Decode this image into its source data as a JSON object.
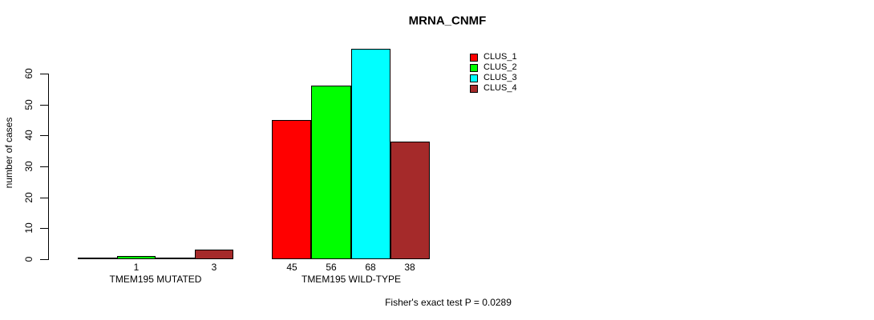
{
  "chart_data": {
    "type": "bar",
    "title": "MRNA_CNMF",
    "ylabel": "number of cases",
    "xlabel": "",
    "ylim": [
      0,
      60
    ],
    "yticks": [
      0,
      10,
      20,
      30,
      40,
      50,
      60
    ],
    "grid": false,
    "legend_position": "top-right",
    "categories": [
      "TMEM195 MUTATED",
      "TMEM195 WILD-TYPE"
    ],
    "series": [
      {
        "name": "CLUS_1",
        "color": "#ff0000",
        "values": [
          0,
          45
        ]
      },
      {
        "name": "CLUS_2",
        "color": "#00ff00",
        "values": [
          1,
          56
        ]
      },
      {
        "name": "CLUS_3",
        "color": "#00ffff",
        "values": [
          0,
          68
        ]
      },
      {
        "name": "CLUS_4",
        "color": "#a52a2a",
        "values": [
          3,
          38
        ]
      }
    ],
    "value_labels": {
      "shown": true,
      "hidden_when_zero": true
    },
    "annotation": "Fisher's exact test P = 0.0289"
  }
}
